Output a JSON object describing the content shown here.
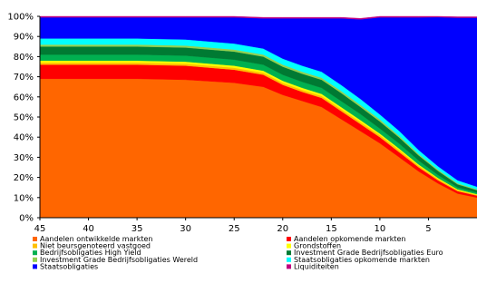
{
  "chart_data": {
    "type": "area",
    "stacked": true,
    "x": [
      45,
      42,
      40,
      35,
      30,
      25,
      22,
      20,
      18,
      16,
      14,
      12,
      10,
      8,
      6,
      4,
      2,
      0
    ],
    "xlim": [
      45,
      0
    ],
    "xticks": [
      "45",
      "40",
      "35",
      "30",
      "25",
      "20",
      "15",
      "10",
      "5"
    ],
    "xtick_values": [
      45,
      40,
      35,
      30,
      25,
      20,
      15,
      10,
      5
    ],
    "ylim": [
      0,
      100
    ],
    "yticks": [
      "0%",
      "10%",
      "20%",
      "30%",
      "40%",
      "50%",
      "60%",
      "70%",
      "80%",
      "90%",
      "100%"
    ],
    "grid": false,
    "legend_position": "bottom",
    "series": [
      {
        "name": "Aandelen ontwikkelde markten",
        "color": "#FF6600",
        "values": [
          69,
          69,
          69,
          69,
          68.5,
          67,
          65,
          61,
          58,
          55,
          49,
          43,
          37,
          30,
          23,
          17,
          12,
          10
        ]
      },
      {
        "name": "Aandelen opkomende markten",
        "color": "#FF0000",
        "values": [
          7,
          7,
          7,
          7,
          7,
          6.5,
          6,
          5,
          4.5,
          4.5,
          4,
          3.5,
          3,
          2.5,
          2,
          1.5,
          1.2,
          1
        ]
      },
      {
        "name": "Niet beursgenoteerd vastgoed",
        "color": "#FFC000",
        "values": [
          1,
          1,
          1,
          1,
          1,
          1,
          1,
          1,
          1,
          1,
          1,
          1,
          1,
          1,
          0.8,
          0.7,
          0.5,
          0.4
        ]
      },
      {
        "name": "Grondstoffen",
        "color": "#FFFF00",
        "values": [
          1,
          1,
          1,
          1,
          1,
          1,
          1,
          1,
          1,
          1,
          1,
          1,
          0.8,
          0.8,
          0.6,
          0.5,
          0.4,
          0.3
        ]
      },
      {
        "name": "Bedrijfsobligaties High Yield",
        "color": "#00B050",
        "values": [
          3,
          3,
          3,
          3,
          3,
          3,
          3,
          3,
          3,
          3,
          3,
          3,
          2.5,
          2.5,
          2,
          1.5,
          1,
          0.8
        ]
      },
      {
        "name": "Investment Grade Bedrijfsobligaties Euro",
        "color": "#007A33",
        "values": [
          4,
          4,
          4,
          4,
          4,
          4,
          4,
          4,
          4,
          4,
          4,
          3.5,
          3.5,
          3,
          2.5,
          2,
          1.5,
          1.2
        ]
      },
      {
        "name": "Investment Grade Bedrijfsobligaties Wereld",
        "color": "#92D050",
        "values": [
          1,
          1,
          1,
          1,
          1,
          1,
          1,
          1,
          1,
          1,
          1,
          1,
          1,
          0.8,
          0.7,
          0.6,
          0.5,
          0.4
        ]
      },
      {
        "name": "Staatsobligaties opkomende markten",
        "color": "#00FFFF",
        "values": [
          3,
          3,
          3,
          3,
          3,
          3,
          3,
          3,
          3,
          3,
          3,
          3,
          2.5,
          2.5,
          2,
          1.7,
          1.5,
          1.3
        ]
      },
      {
        "name": "Staatsobligaties",
        "color": "#0000FF",
        "values": [
          10.5,
          10.5,
          10.5,
          10.5,
          11,
          13,
          15,
          20,
          23.5,
          26.5,
          33,
          39.5,
          48.2,
          56.4,
          65.9,
          74.1,
          80.7,
          83.9
        ]
      },
      {
        "name": "Liquiditeiten",
        "color": "#C00080",
        "values": [
          0.5,
          0.5,
          0.5,
          0.5,
          0.5,
          0.5,
          0.5,
          0.5,
          0.5,
          0.5,
          0.5,
          0.5,
          0.5,
          0.5,
          0.5,
          0.5,
          0.5,
          0.5
        ]
      }
    ],
    "legend_order": [
      "Aandelen ontwikkelde markten",
      "Aandelen opkomende markten",
      "Niet beursgenoteerd vastgoed",
      "Grondstoffen",
      "Bedrijfsobligaties High Yield",
      "Investment Grade Bedrijfsobligaties Euro",
      "Investment Grade Bedrijfsobligaties Wereld",
      "Staatsobligaties opkomende markten",
      "Staatsobligaties",
      "Liquiditeiten"
    ]
  }
}
